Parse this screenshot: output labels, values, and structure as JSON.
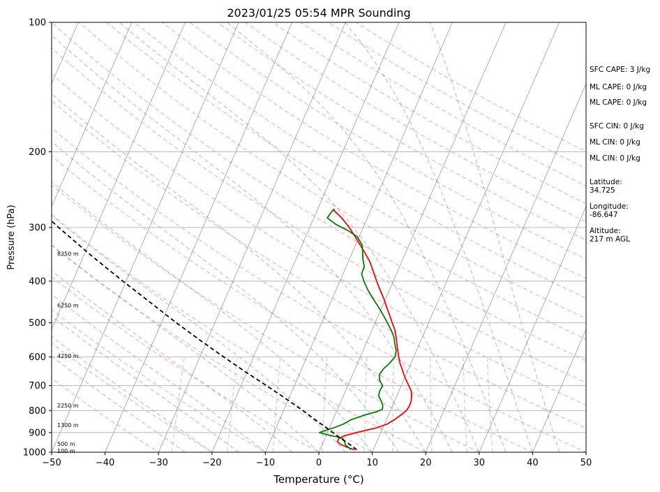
{
  "chart_data": {
    "type": "line",
    "title": "2023/01/25 05:54 MPR Sounding",
    "xlabel": "Temperature (°C)",
    "ylabel": "Pressure (hPa)",
    "xlim": [
      -50,
      50
    ],
    "ylim": [
      1000,
      100
    ],
    "y_scale": "log",
    "x_ticks": [
      -50,
      -40,
      -30,
      -20,
      -10,
      0,
      10,
      20,
      30,
      40,
      50
    ],
    "x_tick_labels": [
      "−50",
      "−40",
      "−30",
      "−20",
      "−10",
      "0",
      "10",
      "20",
      "30",
      "40",
      "50"
    ],
    "y_ticks": [
      1000,
      900,
      800,
      700,
      600,
      500,
      400,
      300,
      200,
      100
    ],
    "y_tick_labels": [
      "1000",
      "900",
      "800",
      "700",
      "600",
      "500",
      "400",
      "300",
      "200",
      "100"
    ],
    "grid": true,
    "height_labels": [
      {
        "p": 992,
        "label": "100 m"
      },
      {
        "p": 957,
        "label": "500 m"
      },
      {
        "p": 864,
        "label": "1300 m"
      },
      {
        "p": 779,
        "label": "2250 m"
      },
      {
        "p": 597,
        "label": "4250 m"
      },
      {
        "p": 455,
        "label": "6250 m"
      },
      {
        "p": 345,
        "label": "8250 m"
      }
    ],
    "series": [
      {
        "color": "#ff0000",
        "points": [
          [
            987,
            6.5
          ],
          [
            975,
            5
          ],
          [
            960,
            3.5
          ],
          [
            945,
            2.6
          ],
          [
            930,
            2.6
          ],
          [
            915,
            3.5
          ],
          [
            900,
            5.5
          ],
          [
            880,
            8.5
          ],
          [
            860,
            10.5
          ],
          [
            840,
            11.5
          ],
          [
            820,
            12.3
          ],
          [
            800,
            13
          ],
          [
            780,
            13.2
          ],
          [
            760,
            13.1
          ],
          [
            740,
            12.8
          ],
          [
            720,
            12.3
          ],
          [
            700,
            11.4
          ],
          [
            680,
            10.5
          ],
          [
            660,
            9.6
          ],
          [
            640,
            8.8
          ],
          [
            620,
            7.9
          ],
          [
            600,
            7.2
          ],
          [
            580,
            6.5
          ],
          [
            560,
            5.8
          ],
          [
            540,
            5.1
          ],
          [
            520,
            4.3
          ],
          [
            500,
            3.2
          ],
          [
            480,
            2.1
          ],
          [
            460,
            0.9
          ],
          [
            440,
            -0.3
          ],
          [
            420,
            -1.7
          ],
          [
            400,
            -3.1
          ],
          [
            380,
            -4.5
          ],
          [
            360,
            -6
          ],
          [
            340,
            -8
          ],
          [
            320,
            -10.2
          ],
          [
            300,
            -12.6
          ],
          [
            285,
            -14.8
          ],
          [
            272,
            -17.2
          ]
        ]
      },
      {
        "color": "#008000",
        "points": [
          [
            987,
            5.8
          ],
          [
            975,
            5.2
          ],
          [
            960,
            4.3
          ],
          [
            945,
            4
          ],
          [
            930,
            3.4
          ],
          [
            920,
            2
          ],
          [
            910,
            0
          ],
          [
            900,
            -1.5
          ],
          [
            890,
            -0.5
          ],
          [
            875,
            1
          ],
          [
            860,
            2.3
          ],
          [
            840,
            3.4
          ],
          [
            820,
            5.5
          ],
          [
            805,
            7.5
          ],
          [
            795,
            8.4
          ],
          [
            780,
            8.2
          ],
          [
            760,
            7.5
          ],
          [
            740,
            6.6
          ],
          [
            720,
            6.4
          ],
          [
            700,
            6.5
          ],
          [
            680,
            5.5
          ],
          [
            660,
            5
          ],
          [
            640,
            5.3
          ],
          [
            620,
            6
          ],
          [
            600,
            6.5
          ],
          [
            580,
            6.2
          ],
          [
            560,
            5.4
          ],
          [
            540,
            4.7
          ],
          [
            520,
            3.6
          ],
          [
            500,
            2.3
          ],
          [
            480,
            0.9
          ],
          [
            460,
            -0.6
          ],
          [
            440,
            -2.3
          ],
          [
            420,
            -4
          ],
          [
            400,
            -5.5
          ],
          [
            385,
            -6.5
          ],
          [
            370,
            -6.6
          ],
          [
            355,
            -7.5
          ],
          [
            330,
            -8.7
          ],
          [
            315,
            -10.4
          ],
          [
            305,
            -12.6
          ],
          [
            295,
            -15.4
          ],
          [
            285,
            -17.5
          ],
          [
            276,
            -17.2
          ],
          [
            272,
            -16.8
          ]
        ]
      },
      {
        "color": "#000000",
        "dashed": true,
        "points": [
          [
            987,
            6.9
          ],
          [
            960,
            5.2
          ],
          [
            930,
            3.1
          ],
          [
            900,
            1
          ],
          [
            870,
            -1.1
          ],
          [
            850,
            -2.6
          ],
          [
            800,
            -6.4
          ],
          [
            750,
            -10.6
          ],
          [
            700,
            -15.2
          ],
          [
            650,
            -20.3
          ],
          [
            600,
            -25.6
          ],
          [
            550,
            -31.2
          ],
          [
            500,
            -37.2
          ],
          [
            450,
            -43.5
          ],
          [
            400,
            -50.6
          ],
          [
            350,
            -58.4
          ],
          [
            300,
            -67
          ],
          [
            272,
            -72.2
          ]
        ]
      }
    ]
  },
  "side_panel": {
    "items": [
      "SFC CAPE: 3 J/kg",
      "ML CAPE: 0 J/kg",
      "ML CAPE: 0 J/kg",
      "SFC CIN: 0 J/kg",
      "ML CIN: 0 J/kg",
      "ML CIN: 0 J/kg",
      "Latitude:\n34.725",
      "Longitude:\n-86.647",
      "Altitude:\n217 m AGL"
    ]
  }
}
